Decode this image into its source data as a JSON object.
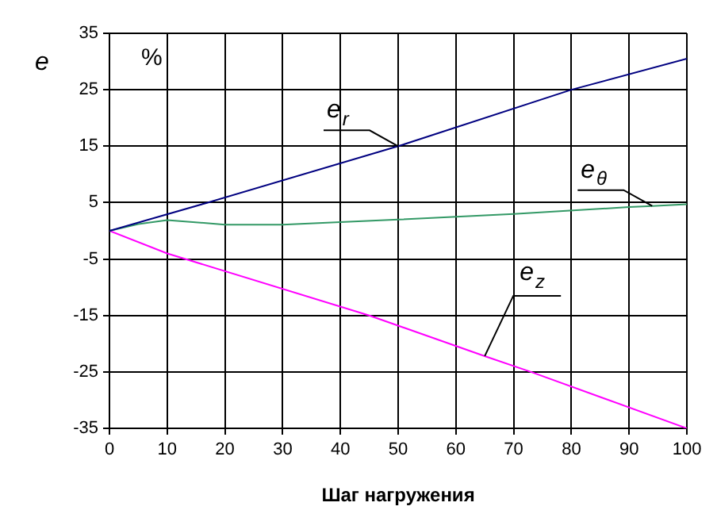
{
  "chart_data": {
    "type": "line",
    "xlabel": "Шаг нагружения",
    "ylabel": "e",
    "xlim": [
      0,
      100
    ],
    "xticks": [
      0,
      10,
      20,
      30,
      40,
      50,
      60,
      70,
      80,
      90,
      100
    ],
    "ylim": [
      -35,
      35
    ],
    "yticks": [
      -35,
      -25,
      -15,
      -5,
      5,
      15,
      25,
      35
    ],
    "grid": true,
    "legend": false,
    "marker": "none",
    "line_style": "solid",
    "series": [
      {
        "color": "#000080",
        "x": [
          0,
          17,
          50,
          80,
          100
        ],
        "values": [
          0,
          5,
          15,
          25,
          30.5
        ]
      },
      {
        "color": "#339966",
        "x": [
          0,
          5,
          10,
          20,
          30,
          50,
          70,
          90,
          94,
          100
        ],
        "values": [
          0,
          1.2,
          1.9,
          1.1,
          1.1,
          2,
          3,
          4.2,
          4.4,
          4.7
        ]
      },
      {
        "color": "#ff00ff",
        "x": [
          0,
          10,
          45,
          65,
          73,
          100
        ],
        "values": [
          0,
          -4,
          -15,
          -22.2,
          -25,
          -35
        ]
      }
    ],
    "annotations": [
      "%",
      {
        "text": "e$_{r}$",
        "x": 50,
        "y": 15
      },
      {
        "text": "e$_{θ}$",
        "x": 94,
        "y": 4.4
      },
      {
        "text": "e$_{z}$",
        "x": 65,
        "y": -22.2
      }
    ]
  }
}
